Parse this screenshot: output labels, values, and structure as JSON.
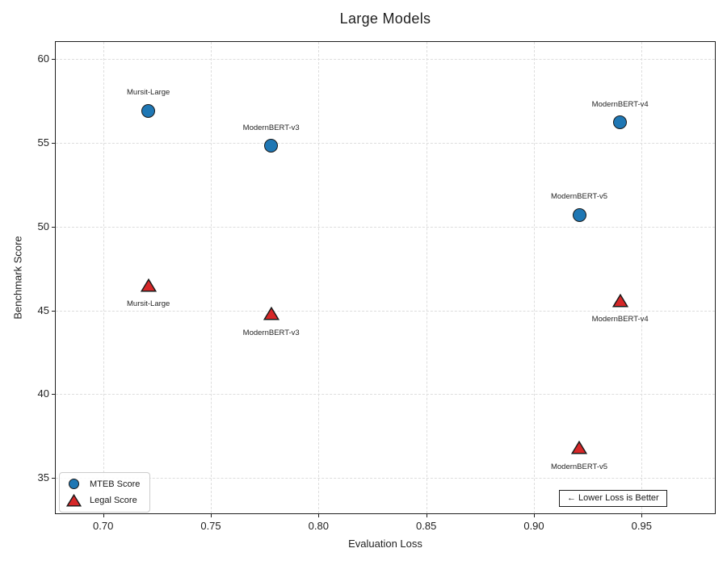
{
  "chart_data": {
    "type": "scatter",
    "title": "Large Models",
    "xlabel": "Evaluation Loss",
    "ylabel": "Benchmark Score",
    "xlim": [
      0.678,
      0.984
    ],
    "ylim": [
      32.9,
      61.0
    ],
    "x_ticks": [
      "0.70",
      "0.75",
      "0.80",
      "0.85",
      "0.90",
      "0.95"
    ],
    "x_tick_values": [
      0.7,
      0.75,
      0.8,
      0.85,
      0.9,
      0.95
    ],
    "y_ticks": [
      "35",
      "40",
      "45",
      "50",
      "55",
      "60"
    ],
    "y_tick_values": [
      35,
      40,
      45,
      50,
      55,
      60
    ],
    "grid": "dashed-both-axes",
    "legend_position": "lower-left",
    "series": [
      {
        "name": "MTEB Score",
        "marker": "circle",
        "color": "#1f77b4",
        "edge_color": "#1a1a1a",
        "points": [
          {
            "label": "Mursit-Large",
            "x": 0.721,
            "y": 56.9,
            "label_pos": "above"
          },
          {
            "label": "ModernBERT-v3",
            "x": 0.778,
            "y": 54.8,
            "label_pos": "above"
          },
          {
            "label": "ModernBERT-v4",
            "x": 0.94,
            "y": 56.2,
            "label_pos": "above"
          },
          {
            "label": "ModernBERT-v5",
            "x": 0.921,
            "y": 50.7,
            "label_pos": "above"
          }
        ]
      },
      {
        "name": "Legal Score",
        "marker": "triangle",
        "color": "#d62728",
        "edge_color": "#1a1a1a",
        "points": [
          {
            "label": "Mursit-Large",
            "x": 0.721,
            "y": 46.5,
            "label_pos": "below"
          },
          {
            "label": "ModernBERT-v3",
            "x": 0.778,
            "y": 44.8,
            "label_pos": "below"
          },
          {
            "label": "ModernBERT-v4",
            "x": 0.94,
            "y": 45.6,
            "label_pos": "below"
          },
          {
            "label": "ModernBERT-v5",
            "x": 0.921,
            "y": 36.8,
            "label_pos": "below"
          }
        ]
      }
    ],
    "annotation": {
      "text": "←  Lower Loss is Better"
    }
  }
}
